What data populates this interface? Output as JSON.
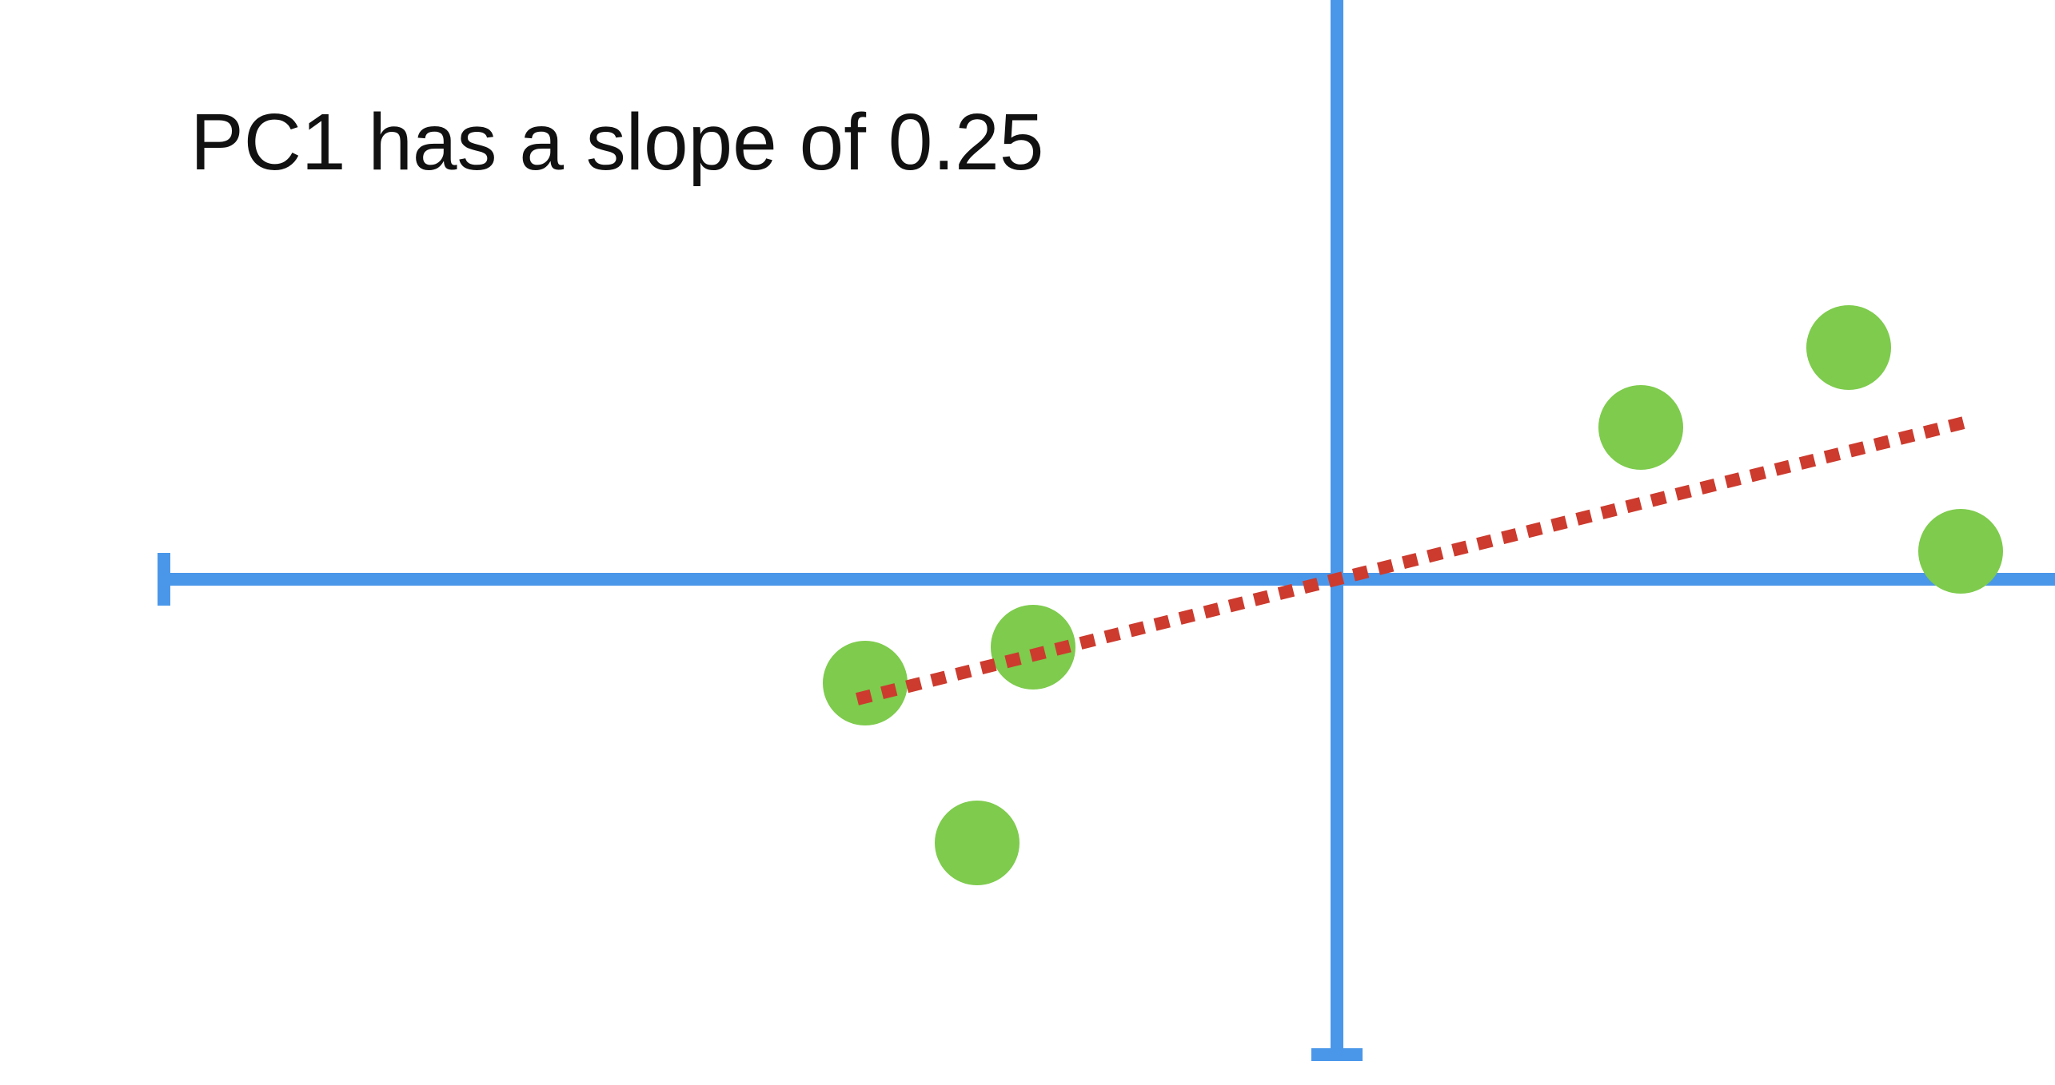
{
  "caption": "PC1 has a slope of 0.25",
  "pc1_slope": 0.25,
  "colors": {
    "axis": "#4a97ea",
    "points": "#7ecb4d",
    "pc1_line": "#cc3b2e",
    "text": "#111111"
  },
  "points": [
    {
      "x": -5.9,
      "y": -1.3
    },
    {
      "x": -3.8,
      "y": -0.85
    },
    {
      "x": -4.5,
      "y": -3.3
    },
    {
      "x": 3.8,
      "y": 1.9
    },
    {
      "x": 6.4,
      "y": 2.9
    },
    {
      "x": 7.8,
      "y": 0.35
    }
  ],
  "pc1_line": {
    "x_start": -6.0,
    "x_end": 7.95
  }
}
